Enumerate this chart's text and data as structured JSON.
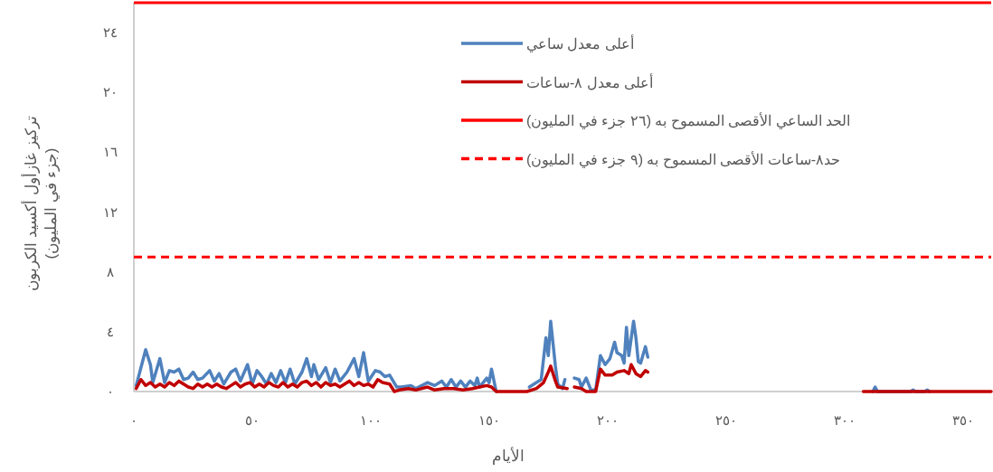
{
  "chart_data": {
    "type": "line",
    "xlabel": "الأيام",
    "ylabel": "تركيز غازأول أكسيد الكربون\n(جزء في المليون)",
    "xlim": [
      0,
      362
    ],
    "ylim": [
      0,
      26
    ],
    "xticks": [
      {
        "value": 0,
        "label": "٠"
      },
      {
        "value": 50,
        "label": "٥٠"
      },
      {
        "value": 100,
        "label": "١٠٠"
      },
      {
        "value": 150,
        "label": "١٥٠"
      },
      {
        "value": 200,
        "label": "٢٠٠"
      },
      {
        "value": 250,
        "label": "٢٥٠"
      },
      {
        "value": 300,
        "label": "٣٠٠"
      },
      {
        "value": 350,
        "label": "٣٥٠"
      }
    ],
    "yticks": [
      {
        "value": 0,
        "label": "٠"
      },
      {
        "value": 4,
        "label": "٤"
      },
      {
        "value": 8,
        "label": "٨"
      },
      {
        "value": 12,
        "label": "١٢"
      },
      {
        "value": 16,
        "label": "١٦"
      },
      {
        "value": 20,
        "label": "٢٠"
      },
      {
        "value": 24,
        "label": "٢٤"
      }
    ],
    "grid": false,
    "legend": "top",
    "marker": "none",
    "line_style": "solid",
    "series": [
      {
        "name": "أعلى معدل ساعي",
        "color": "#4f81bd",
        "x": [
          1,
          5,
          7,
          8,
          11,
          13,
          15,
          17,
          19,
          21,
          23,
          25,
          27,
          29,
          32,
          34,
          36,
          38,
          41,
          43,
          45,
          48,
          50,
          52,
          54,
          56,
          58,
          60,
          62,
          64,
          66,
          68,
          71,
          73,
          75,
          76,
          78,
          81,
          83,
          85,
          87,
          90,
          93,
          95,
          97,
          99,
          102,
          104,
          106,
          108,
          111,
          113,
          117,
          119,
          124,
          127,
          130,
          132,
          134,
          136,
          138,
          140,
          142,
          144,
          145,
          146,
          149,
          150,
          151,
          153,
          160,
          167,
          170,
          172,
          174,
          175,
          176,
          178,
          179,
          181,
          182,
          184,
          186,
          188,
          189,
          191,
          193,
          195,
          197,
          199,
          201,
          203,
          204,
          206,
          207,
          208,
          209,
          211,
          212,
          213,
          214,
          216,
          217,
          260,
          312,
          313,
          314,
          328,
          329,
          330,
          334,
          335,
          336
        ],
        "values": [
          0.4,
          2.8,
          1.8,
          0.6,
          2.2,
          0.6,
          1.4,
          1.3,
          1.5,
          0.8,
          0.9,
          1.3,
          0.8,
          0.9,
          1.4,
          0.7,
          1.2,
          0.5,
          1.3,
          1.5,
          0.7,
          1.8,
          0.5,
          1.4,
          1.0,
          0.5,
          1.2,
          0.6,
          1.4,
          0.6,
          1.5,
          0.5,
          1.3,
          2.2,
          1.0,
          1.8,
          0.8,
          1.6,
          0.6,
          1.5,
          0.7,
          1.3,
          2.2,
          1.0,
          2.6,
          0.7,
          1.4,
          1.3,
          1.0,
          1.1,
          0.3,
          0.3,
          0.4,
          0.2,
          0.6,
          0.4,
          0.7,
          0.3,
          0.8,
          0.3,
          0.7,
          0.3,
          0.7,
          0.4,
          0.9,
          0.3,
          0.9,
          0.6,
          1.5,
          0,
          null,
          0.3,
          0.6,
          0.8,
          3.6,
          2.4,
          4.7,
          1.7,
          0.5,
          0.2,
          0.8,
          null,
          0.9,
          0.8,
          0.3,
          0.9,
          0.1,
          0.1,
          2.4,
          1.8,
          2.2,
          3.3,
          2.6,
          2.4,
          1.9,
          4.3,
          2.4,
          4.7,
          3.6,
          2.0,
          1.9,
          3.0,
          2.3,
          null,
          0,
          0.3,
          0,
          0,
          0.1,
          0,
          0,
          0.1,
          0
        ]
      },
      {
        "name": "أعلى معدل ٨-ساعات",
        "color": "#c00000",
        "x": [
          1,
          3,
          5,
          7,
          9,
          11,
          13,
          15,
          17,
          19,
          21,
          23,
          25,
          27,
          29,
          31,
          33,
          35,
          37,
          39,
          41,
          43,
          45,
          47,
          49,
          51,
          53,
          55,
          57,
          59,
          61,
          63,
          65,
          67,
          69,
          71,
          73,
          75,
          77,
          79,
          81,
          83,
          85,
          87,
          89,
          91,
          93,
          95,
          97,
          99,
          101,
          103,
          105,
          108,
          110,
          112,
          116,
          119,
          124,
          127,
          131,
          135,
          139,
          143,
          146,
          149,
          151,
          153,
          166,
          170,
          173,
          175,
          176,
          178,
          179,
          183,
          184,
          186,
          189,
          191,
          195,
          197,
          199,
          202,
          204,
          207,
          209,
          210,
          212,
          214,
          216,
          217,
          250,
          308,
          362
        ],
        "values": [
          0.2,
          0.8,
          0.4,
          0.6,
          0.3,
          0.5,
          0.3,
          0.6,
          0.4,
          0.7,
          0.5,
          0.3,
          0.2,
          0.5,
          0.3,
          0.5,
          0.3,
          0.5,
          0.3,
          0.2,
          0.4,
          0.6,
          0.3,
          0.5,
          0.6,
          0.3,
          0.5,
          0.3,
          0.6,
          0.4,
          0.3,
          0.6,
          0.3,
          0.5,
          0.3,
          0.6,
          0.7,
          0.4,
          0.6,
          0.3,
          0.6,
          0.4,
          0.5,
          0.3,
          0.5,
          0.7,
          0.4,
          0.6,
          0.4,
          0.5,
          0.3,
          0.8,
          0.6,
          0.5,
          0,
          0.1,
          0.2,
          0.1,
          0.3,
          0.1,
          0.2,
          0.2,
          0.1,
          0.2,
          0.3,
          0.4,
          0.3,
          0,
          0,
          0.2,
          0.6,
          1.3,
          1.7,
          0.7,
          0.3,
          0.2,
          null,
          0.3,
          0.2,
          0,
          0,
          1.5,
          1.1,
          1.1,
          1.3,
          1.4,
          1.2,
          1.8,
          1.2,
          1.0,
          1.4,
          1.3,
          null,
          0,
          0
        ]
      }
    ],
    "ref_lines": [
      {
        "axis": "y",
        "value": 26,
        "label": "الحد الساعي الأقصى المسموح به (٢٦ جزء في المليون)",
        "color": "#ff0000",
        "line_style": "solid"
      },
      {
        "axis": "y",
        "value": 9,
        "label": "حد٨-ساعات الأقصى المسموح به (٩ جزء في المليون)",
        "color": "#ff0000",
        "line_style": "dashed"
      }
    ]
  }
}
